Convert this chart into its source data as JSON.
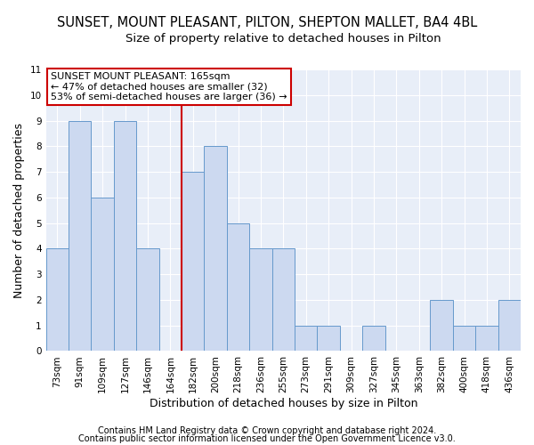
{
  "title": "SUNSET, MOUNT PLEASANT, PILTON, SHEPTON MALLET, BA4 4BL",
  "subtitle": "Size of property relative to detached houses in Pilton",
  "xlabel": "Distribution of detached houses by size in Pilton",
  "ylabel": "Number of detached properties",
  "categories": [
    "73sqm",
    "91sqm",
    "109sqm",
    "127sqm",
    "146sqm",
    "164sqm",
    "182sqm",
    "200sqm",
    "218sqm",
    "236sqm",
    "255sqm",
    "273sqm",
    "291sqm",
    "309sqm",
    "327sqm",
    "345sqm",
    "363sqm",
    "382sqm",
    "400sqm",
    "418sqm",
    "436sqm"
  ],
  "values": [
    4,
    9,
    6,
    9,
    4,
    0,
    7,
    8,
    5,
    4,
    4,
    1,
    1,
    0,
    1,
    0,
    0,
    2,
    1,
    1,
    2
  ],
  "bar_color": "#ccd9f0",
  "bar_edge_color": "#6699cc",
  "line_index": 5,
  "property_line_color": "#cc0000",
  "annotation_line1": "SUNSET MOUNT PLEASANT: 165sqm",
  "annotation_line2": "← 47% of detached houses are smaller (32)",
  "annotation_line3": "53% of semi-detached houses are larger (36) →",
  "annotation_box_facecolor": "#ffffff",
  "annotation_box_edgecolor": "#cc0000",
  "ylim": [
    0,
    11
  ],
  "yticks": [
    0,
    1,
    2,
    3,
    4,
    5,
    6,
    7,
    8,
    9,
    10,
    11
  ],
  "grid_color": "#d8e4f4",
  "bg_color": "#e8eef8",
  "title_fontsize": 10.5,
  "subtitle_fontsize": 9.5,
  "label_fontsize": 9,
  "tick_fontsize": 7.5,
  "annot_fontsize": 8,
  "footnote1": "Contains HM Land Registry data © Crown copyright and database right 2024.",
  "footnote2": "Contains public sector information licensed under the Open Government Licence v3.0.",
  "footnote_fontsize": 7
}
